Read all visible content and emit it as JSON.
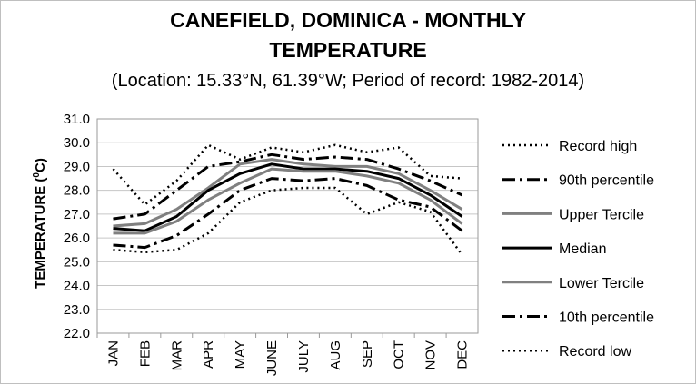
{
  "chart_data": {
    "type": "line",
    "title_line1": "CANEFIELD, DOMINICA - MONTHLY",
    "title_line2": "TEMPERATURE",
    "subtitle": "(Location: 15.33°N, 61.39°W; Period of record: 1982-2014)",
    "ylabel_main": "TEMPERATURE (",
    "ylabel_sup": "0",
    "ylabel_end": "C)",
    "xlabel": "",
    "ylim": [
      22.0,
      31.0
    ],
    "yticks": [
      "22.0",
      "23.0",
      "24.0",
      "25.0",
      "26.0",
      "27.0",
      "28.0",
      "29.0",
      "30.0",
      "31.0"
    ],
    "categories": [
      "JAN",
      "FEB",
      "MAR",
      "APR",
      "MAY",
      "JUNE",
      "JULY",
      "AUG",
      "SEP",
      "OCT",
      "NOV",
      "DEC"
    ],
    "grid": true,
    "legend_position": "right",
    "series": [
      {
        "name": "Record high",
        "values": [
          28.9,
          27.4,
          28.4,
          29.9,
          29.3,
          29.8,
          29.6,
          29.9,
          29.6,
          29.8,
          28.6,
          28.5
        ],
        "style": "dotted",
        "color": "#000000",
        "width": 2.5
      },
      {
        "name": "90th percentile",
        "values": [
          26.8,
          27.0,
          28.0,
          29.0,
          29.2,
          29.5,
          29.3,
          29.4,
          29.3,
          28.9,
          28.4,
          27.8
        ],
        "style": "dashdot",
        "color": "#000000",
        "width": 3
      },
      {
        "name": "Upper Tercile",
        "values": [
          26.5,
          26.6,
          27.2,
          28.1,
          29.1,
          29.3,
          29.1,
          29.0,
          29.0,
          28.7,
          28.0,
          27.2
        ],
        "style": "solid",
        "color": "#808080",
        "width": 3
      },
      {
        "name": "Median",
        "values": [
          26.4,
          26.3,
          26.9,
          28.0,
          28.7,
          29.1,
          28.9,
          28.9,
          28.8,
          28.5,
          27.8,
          26.9
        ],
        "style": "solid",
        "color": "#000000",
        "width": 3
      },
      {
        "name": "Lower Tercile",
        "values": [
          26.2,
          26.2,
          26.7,
          27.6,
          28.3,
          28.9,
          28.8,
          28.8,
          28.6,
          28.3,
          27.6,
          26.6
        ],
        "style": "solid",
        "color": "#808080",
        "width": 3
      },
      {
        "name": "10th percentile",
        "values": [
          25.7,
          25.6,
          26.1,
          27.0,
          28.0,
          28.5,
          28.4,
          28.5,
          28.2,
          27.6,
          27.3,
          26.3
        ],
        "style": "dashdot",
        "color": "#000000",
        "width": 3
      },
      {
        "name": "Record low",
        "values": [
          25.5,
          25.4,
          25.5,
          26.2,
          27.5,
          28.0,
          28.1,
          28.1,
          27.0,
          27.5,
          27.1,
          25.3
        ],
        "style": "dotted",
        "color": "#000000",
        "width": 2.5
      }
    ]
  }
}
